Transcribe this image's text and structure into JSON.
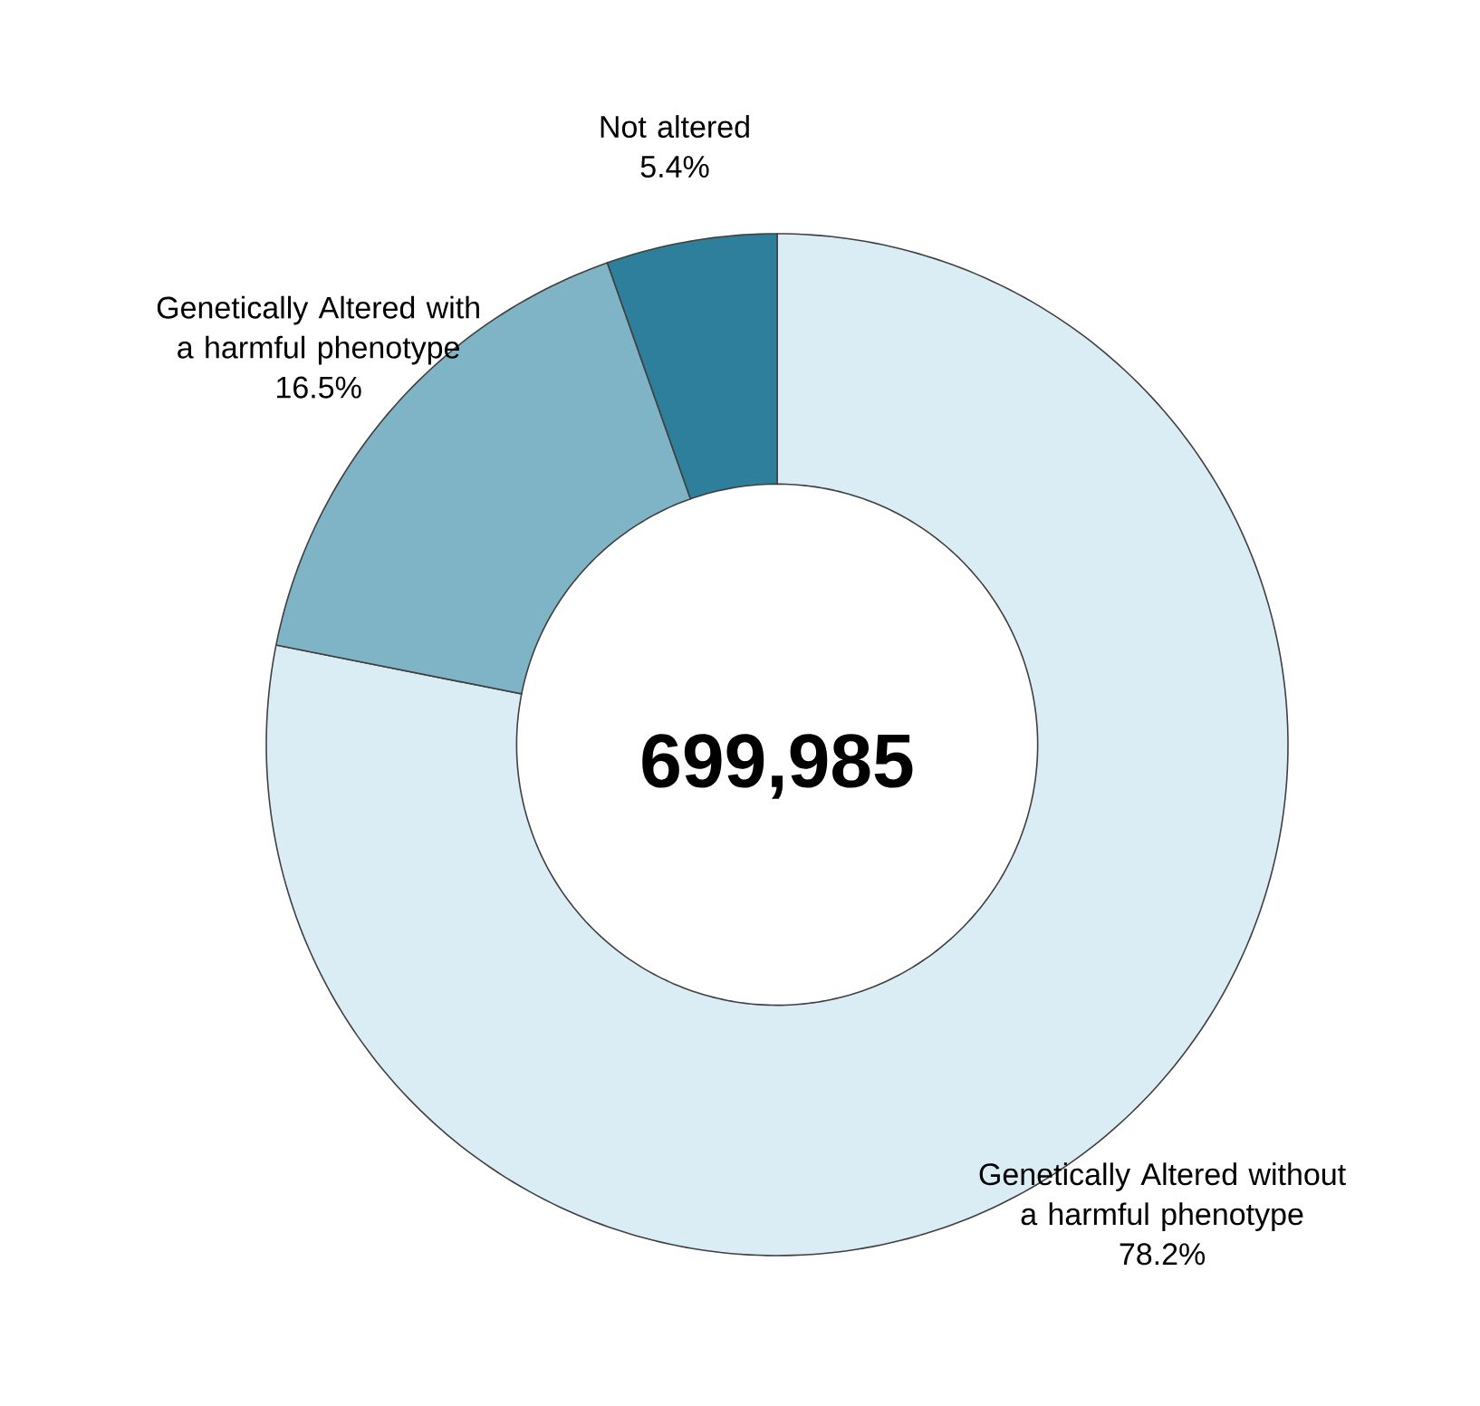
{
  "chart_data": {
    "type": "donut",
    "categories": [
      "Genetically Altered without a harmful phenotype",
      "Genetically Altered with a harmful phenotype",
      "Not altered"
    ],
    "values": [
      78.2,
      16.5,
      5.4
    ],
    "colors": [
      "#daedf4",
      "#7fb3c6",
      "#2e7f9b"
    ],
    "value_labels": [
      "78.2%",
      "16.5%",
      "5.4%"
    ],
    "annotations": [
      "699,985"
    ]
  }
}
